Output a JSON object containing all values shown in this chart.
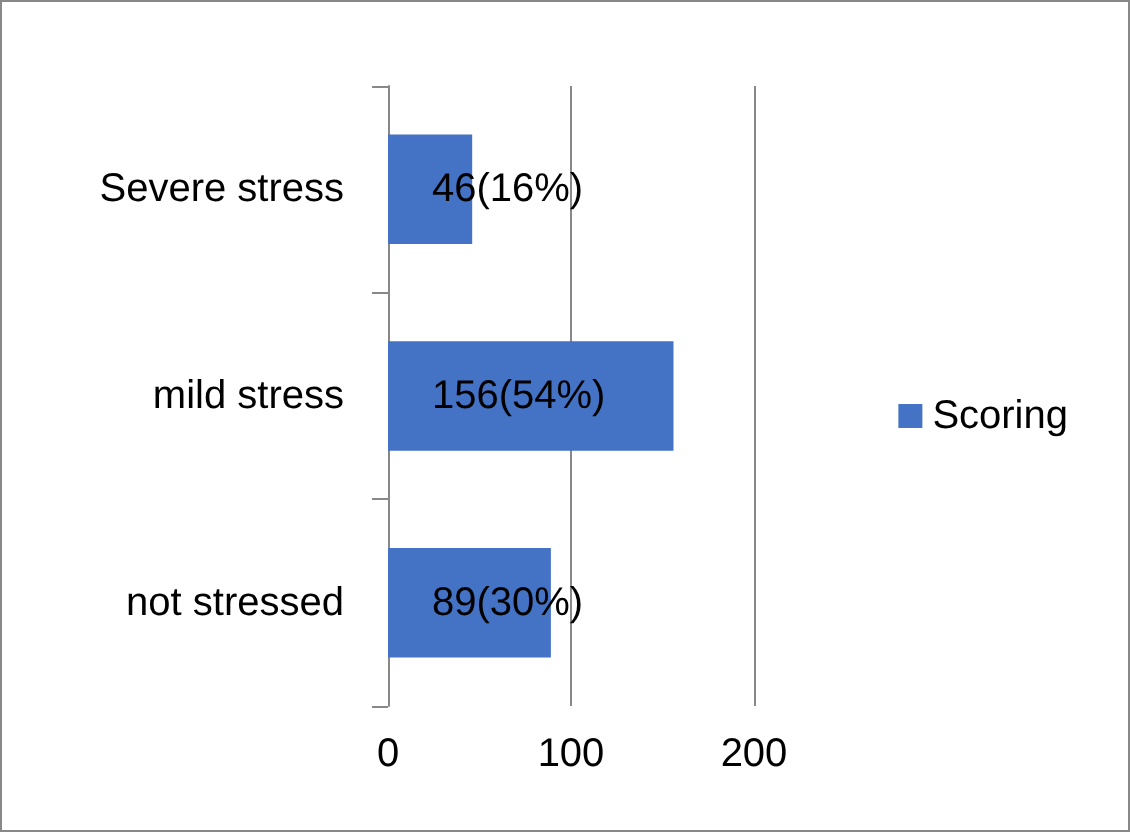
{
  "chart_data": {
    "type": "bar",
    "orientation": "horizontal",
    "categories": [
      "Severe stress",
      "mild stress",
      "not stressed"
    ],
    "series": [
      {
        "name": "Scoring",
        "color": "#4472c4",
        "values": [
          46,
          156,
          89
        ],
        "value_labels": [
          "46(16%)",
          "156(54%)",
          "89(30%)"
        ]
      }
    ],
    "xlim": [
      0,
      200
    ],
    "xticks": [
      0,
      100,
      200
    ],
    "grid": "x",
    "legend": "right"
  }
}
